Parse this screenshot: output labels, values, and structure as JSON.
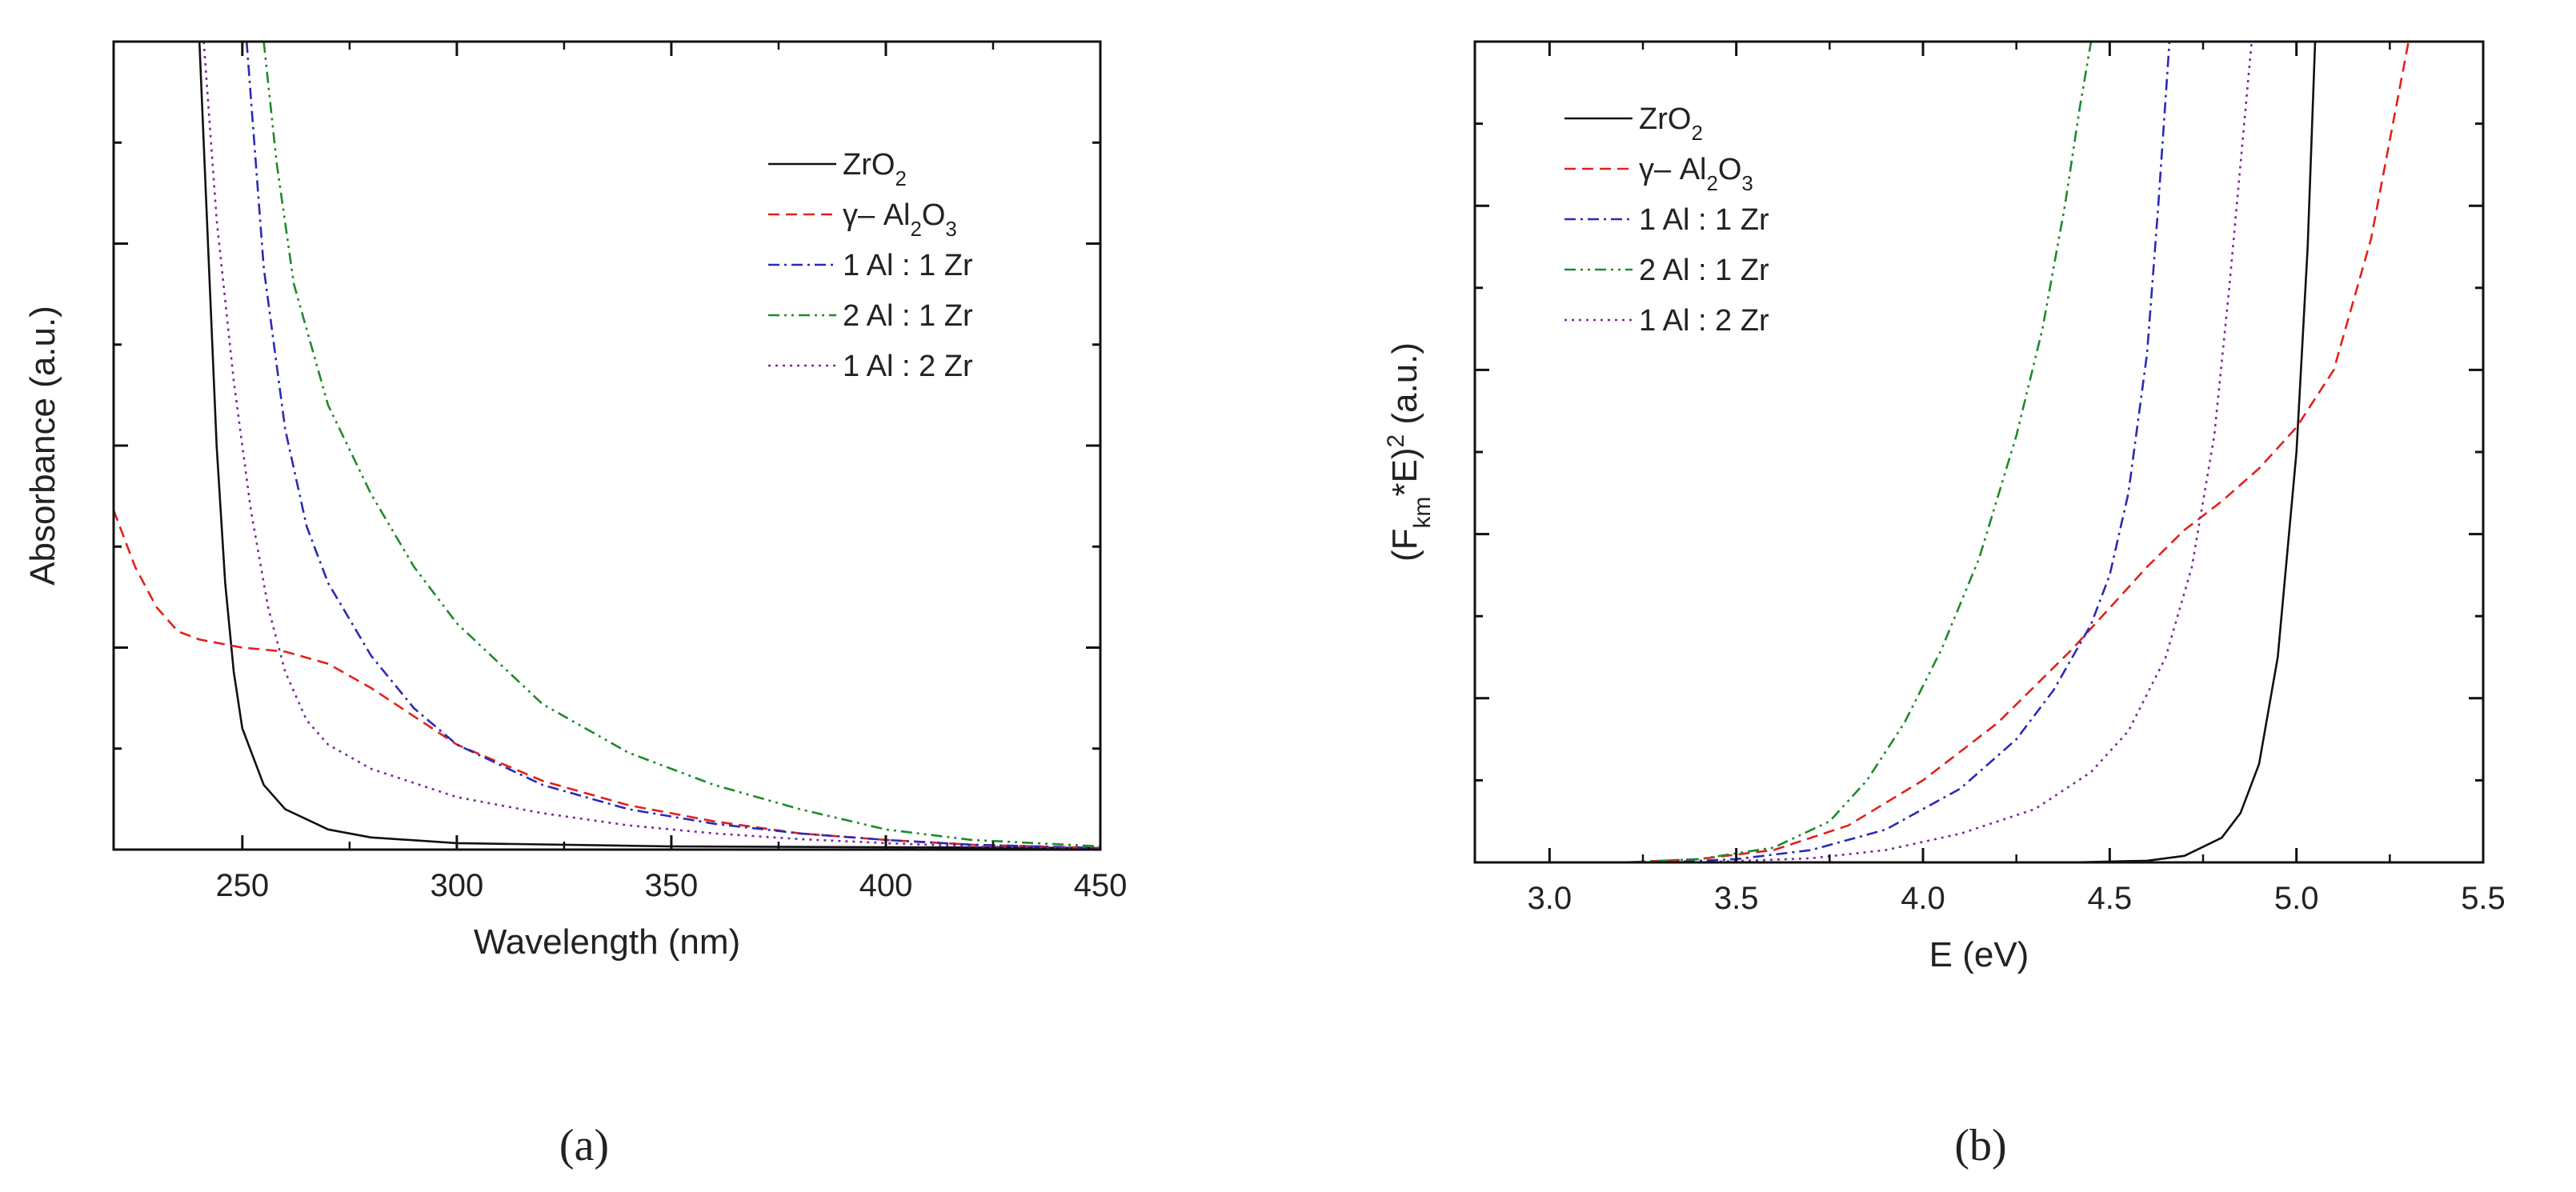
{
  "chart_data": [
    {
      "type": "line",
      "panel_label": "(a)",
      "xlabel": "Wavelength (nm)",
      "ylabel": "Absorbance (a.u.)",
      "xlim": [
        220,
        450
      ],
      "ylim": [
        0,
        1.0
      ],
      "x_ticks": [
        250,
        300,
        350,
        400,
        450
      ],
      "x_tick_labels": [
        "250",
        "300",
        "350",
        "400",
        "450"
      ],
      "y_tick_labels_visible": false,
      "grid": false,
      "legend_position": "top-right",
      "series": [
        {
          "name": "ZrO2",
          "label_main": "ZrO",
          "label_parts": [
            {
              "t": "ZrO"
            },
            {
              "t": "2",
              "sub": true
            }
          ],
          "color": "#111111",
          "style": "solid",
          "points": [
            [
              240,
              1.0
            ],
            [
              242,
              0.75
            ],
            [
              244,
              0.5
            ],
            [
              246,
              0.33
            ],
            [
              248,
              0.22
            ],
            [
              250,
              0.15
            ],
            [
              255,
              0.08
            ],
            [
              260,
              0.05
            ],
            [
              270,
              0.025
            ],
            [
              280,
              0.015
            ],
            [
              300,
              0.008
            ],
            [
              350,
              0.004
            ],
            [
              450,
              0.002
            ]
          ]
        },
        {
          "name": "γ-Al2O3",
          "label_parts": [
            {
              "t": "γ– Al"
            },
            {
              "t": "2",
              "sub": true
            },
            {
              "t": "O"
            },
            {
              "t": "3",
              "sub": true
            }
          ],
          "color": "#e2201c",
          "style": "dashed",
          "points": [
            [
              220,
              0.42
            ],
            [
              225,
              0.35
            ],
            [
              230,
              0.3
            ],
            [
              235,
              0.27
            ],
            [
              240,
              0.26
            ],
            [
              245,
              0.255
            ],
            [
              250,
              0.25
            ],
            [
              260,
              0.245
            ],
            [
              270,
              0.23
            ],
            [
              280,
              0.2
            ],
            [
              290,
              0.165
            ],
            [
              300,
              0.13
            ],
            [
              320,
              0.085
            ],
            [
              340,
              0.055
            ],
            [
              360,
              0.035
            ],
            [
              380,
              0.02
            ],
            [
              400,
              0.012
            ],
            [
              420,
              0.006
            ],
            [
              450,
              0.002
            ]
          ]
        },
        {
          "name": "1 Al : 1 Zr",
          "label_parts": [
            {
              "t": "1 Al : 1 Zr"
            }
          ],
          "color": "#2a2ab8",
          "style": "dashdot",
          "points": [
            [
              251,
              1.0
            ],
            [
              255,
              0.72
            ],
            [
              260,
              0.52
            ],
            [
              265,
              0.4
            ],
            [
              270,
              0.33
            ],
            [
              280,
              0.24
            ],
            [
              290,
              0.175
            ],
            [
              300,
              0.13
            ],
            [
              320,
              0.08
            ],
            [
              340,
              0.05
            ],
            [
              360,
              0.032
            ],
            [
              380,
              0.02
            ],
            [
              400,
              0.012
            ],
            [
              420,
              0.006
            ],
            [
              450,
              0.002
            ]
          ]
        },
        {
          "name": "2 Al : 1 Zr",
          "label_parts": [
            {
              "t": "2 Al : 1 Zr"
            }
          ],
          "color": "#1e8a2a",
          "style": "dashdotdot",
          "points": [
            [
              255,
              1.0
            ],
            [
              258,
              0.85
            ],
            [
              262,
              0.7
            ],
            [
              270,
              0.55
            ],
            [
              280,
              0.44
            ],
            [
              290,
              0.35
            ],
            [
              300,
              0.28
            ],
            [
              320,
              0.18
            ],
            [
              340,
              0.12
            ],
            [
              360,
              0.08
            ],
            [
              380,
              0.05
            ],
            [
              400,
              0.025
            ],
            [
              420,
              0.012
            ],
            [
              450,
              0.004
            ]
          ]
        },
        {
          "name": "1 Al : 2 Zr",
          "label_parts": [
            {
              "t": "1 Al : 2 Zr"
            }
          ],
          "color": "#7a2a9a",
          "style": "dotted",
          "points": [
            [
              241,
              1.0
            ],
            [
              244,
              0.78
            ],
            [
              248,
              0.58
            ],
            [
              252,
              0.42
            ],
            [
              256,
              0.3
            ],
            [
              260,
              0.22
            ],
            [
              265,
              0.16
            ],
            [
              270,
              0.13
            ],
            [
              280,
              0.1
            ],
            [
              300,
              0.065
            ],
            [
              320,
              0.045
            ],
            [
              340,
              0.03
            ],
            [
              360,
              0.02
            ],
            [
              380,
              0.013
            ],
            [
              400,
              0.008
            ],
            [
              420,
              0.004
            ],
            [
              450,
              0.002
            ]
          ]
        }
      ]
    },
    {
      "type": "line",
      "panel_label": "(b)",
      "xlabel": "E (eV)",
      "ylabel_parts": [
        {
          "t": "(F"
        },
        {
          "t": "km",
          "sub": true
        },
        {
          "t": "*E)"
        },
        {
          "t": "2",
          "sup": true
        },
        {
          "t": " (a.u.)"
        }
      ],
      "ylabel": "(Fkm*E)2 (a.u.)",
      "xlim": [
        2.8,
        5.5
      ],
      "ylim": [
        0,
        1.0
      ],
      "x_ticks": [
        3.0,
        3.5,
        4.0,
        4.5,
        5.0,
        5.5
      ],
      "x_tick_labels": [
        "3.0",
        "3.5",
        "4.0",
        "4.5",
        "5.0",
        "5.5"
      ],
      "y_tick_labels_visible": false,
      "grid": false,
      "legend_position": "top-left",
      "series": [
        {
          "name": "ZrO2",
          "label_parts": [
            {
              "t": "ZrO"
            },
            {
              "t": "2",
              "sub": true
            }
          ],
          "color": "#111111",
          "style": "solid",
          "points": [
            [
              2.8,
              0.0
            ],
            [
              4.4,
              0.0
            ],
            [
              4.6,
              0.002
            ],
            [
              4.7,
              0.008
            ],
            [
              4.8,
              0.03
            ],
            [
              4.85,
              0.06
            ],
            [
              4.9,
              0.12
            ],
            [
              4.95,
              0.25
            ],
            [
              5.0,
              0.5
            ],
            [
              5.03,
              0.75
            ],
            [
              5.05,
              1.0
            ]
          ]
        },
        {
          "name": "γ-Al2O3",
          "label_parts": [
            {
              "t": "γ– Al"
            },
            {
              "t": "2",
              "sub": true
            },
            {
              "t": "O"
            },
            {
              "t": "3",
              "sub": true
            }
          ],
          "color": "#e2201c",
          "style": "dashed",
          "points": [
            [
              2.8,
              0.0
            ],
            [
              3.2,
              0.0
            ],
            [
              3.4,
              0.004
            ],
            [
              3.6,
              0.015
            ],
            [
              3.8,
              0.045
            ],
            [
              4.0,
              0.1
            ],
            [
              4.2,
              0.17
            ],
            [
              4.4,
              0.26
            ],
            [
              4.5,
              0.31
            ],
            [
              4.6,
              0.36
            ],
            [
              4.7,
              0.405
            ],
            [
              4.8,
              0.44
            ],
            [
              4.9,
              0.48
            ],
            [
              5.0,
              0.53
            ],
            [
              5.1,
              0.6
            ],
            [
              5.2,
              0.76
            ],
            [
              5.3,
              1.0
            ]
          ]
        },
        {
          "name": "1 Al : 1 Zr",
          "label_parts": [
            {
              "t": "1 Al : 1 Zr"
            }
          ],
          "color": "#2a2ab8",
          "style": "dashdot",
          "points": [
            [
              2.8,
              0.0
            ],
            [
              3.3,
              0.0
            ],
            [
              3.5,
              0.004
            ],
            [
              3.7,
              0.015
            ],
            [
              3.9,
              0.04
            ],
            [
              4.1,
              0.09
            ],
            [
              4.25,
              0.15
            ],
            [
              4.35,
              0.21
            ],
            [
              4.45,
              0.29
            ],
            [
              4.5,
              0.35
            ],
            [
              4.55,
              0.45
            ],
            [
              4.6,
              0.62
            ],
            [
              4.63,
              0.8
            ],
            [
              4.66,
              1.0
            ]
          ]
        },
        {
          "name": "2 Al : 1 Zr",
          "label_parts": [
            {
              "t": "2 Al : 1 Zr"
            }
          ],
          "color": "#1e8a2a",
          "style": "dashdotdot",
          "points": [
            [
              2.8,
              0.0
            ],
            [
              3.2,
              0.0
            ],
            [
              3.4,
              0.004
            ],
            [
              3.6,
              0.018
            ],
            [
              3.75,
              0.05
            ],
            [
              3.85,
              0.1
            ],
            [
              3.95,
              0.17
            ],
            [
              4.05,
              0.26
            ],
            [
              4.15,
              0.37
            ],
            [
              4.25,
              0.52
            ],
            [
              4.32,
              0.65
            ],
            [
              4.38,
              0.8
            ],
            [
              4.42,
              0.92
            ],
            [
              4.45,
              1.0
            ]
          ]
        },
        {
          "name": "1 Al : 2 Zr",
          "label_parts": [
            {
              "t": "1 Al : 2 Zr"
            }
          ],
          "color": "#7a2a9a",
          "style": "dotted",
          "points": [
            [
              2.8,
              0.0
            ],
            [
              3.4,
              0.0
            ],
            [
              3.7,
              0.005
            ],
            [
              3.9,
              0.015
            ],
            [
              4.1,
              0.035
            ],
            [
              4.3,
              0.065
            ],
            [
              4.45,
              0.11
            ],
            [
              4.55,
              0.16
            ],
            [
              4.65,
              0.25
            ],
            [
              4.72,
              0.36
            ],
            [
              4.78,
              0.52
            ],
            [
              4.82,
              0.7
            ],
            [
              4.85,
              0.85
            ],
            [
              4.88,
              1.0
            ]
          ]
        }
      ]
    }
  ]
}
